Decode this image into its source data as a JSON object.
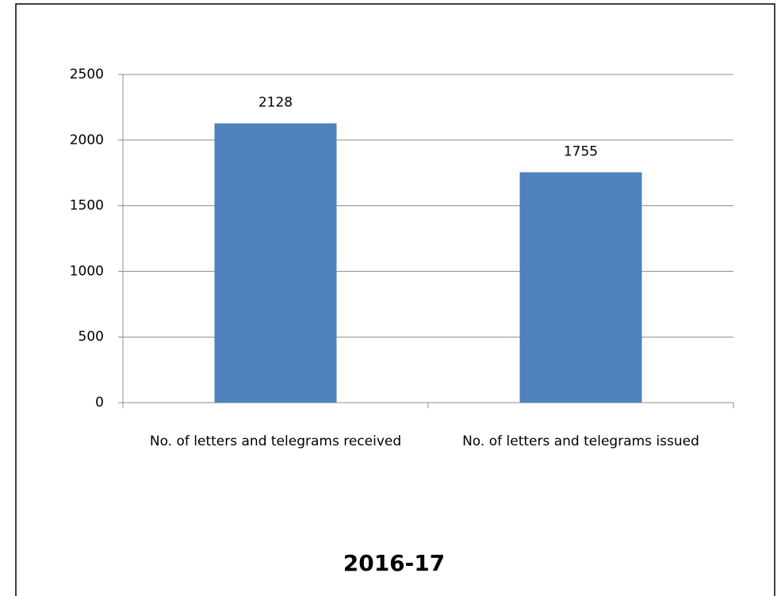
{
  "chart_data": {
    "type": "bar",
    "title": "2016-17",
    "categories": [
      "No. of letters and telegrams received",
      "No. of letters and telegrams issued"
    ],
    "values": [
      2128,
      1755
    ],
    "color": "#4f81bd",
    "ylim": [
      0,
      2500
    ],
    "yticks": [
      0,
      500,
      1000,
      1500,
      2000,
      2500
    ],
    "grid": true
  }
}
